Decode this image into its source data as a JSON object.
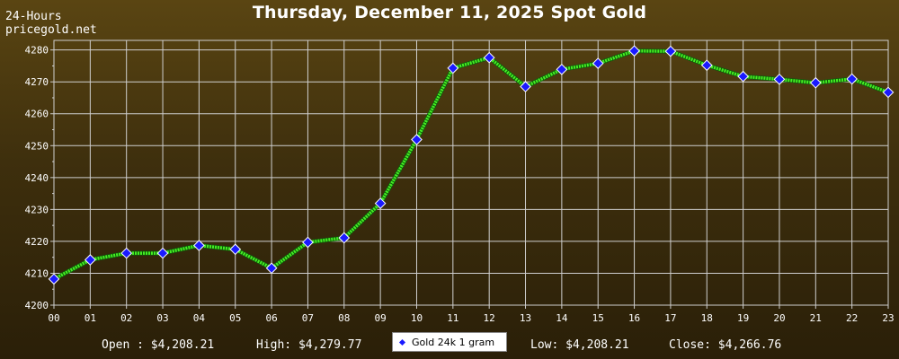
{
  "header": {
    "corner_line1": "24-Hours",
    "corner_line2": "pricegold.net",
    "title": "Thursday, December 11, 2025 Spot Gold"
  },
  "footer": {
    "open": "Open : $4,208.21",
    "high": "High: $4,279.77",
    "low": "Low: $4,208.21",
    "close": "Close: $4,266.76",
    "legend_label": "Gold 24k 1 gram"
  },
  "colors": {
    "line": "#44ee22",
    "marker_fill": "#1a1aff",
    "marker_stroke": "#ffffff",
    "grid": "#cfcfcf",
    "text": "#ffffff"
  },
  "chart_data": {
    "type": "line",
    "title": "Thursday, December 11, 2025 Spot Gold",
    "x": [
      "00",
      "01",
      "02",
      "03",
      "04",
      "05",
      "06",
      "07",
      "08",
      "09",
      "10",
      "11",
      "12",
      "13",
      "14",
      "15",
      "16",
      "17",
      "18",
      "19",
      "20",
      "21",
      "22",
      "23"
    ],
    "series": [
      {
        "name": "Gold 24k 1 gram",
        "values": [
          4208.2,
          4214.2,
          4216.3,
          4216.3,
          4218.7,
          4217.5,
          4211.6,
          4219.7,
          4221.1,
          4231.9,
          4251.9,
          4274.3,
          4277.6,
          4268.5,
          4273.9,
          4275.8,
          4279.7,
          4279.6,
          4275.2,
          4271.7,
          4270.8,
          4269.7,
          4270.9,
          4266.7
        ]
      }
    ],
    "y_ticks": [
      4200,
      4210,
      4220,
      4230,
      4240,
      4250,
      4260,
      4270,
      4280
    ],
    "ylim": [
      4200,
      4283
    ],
    "grid": true,
    "legend_position": "bottom-center"
  }
}
